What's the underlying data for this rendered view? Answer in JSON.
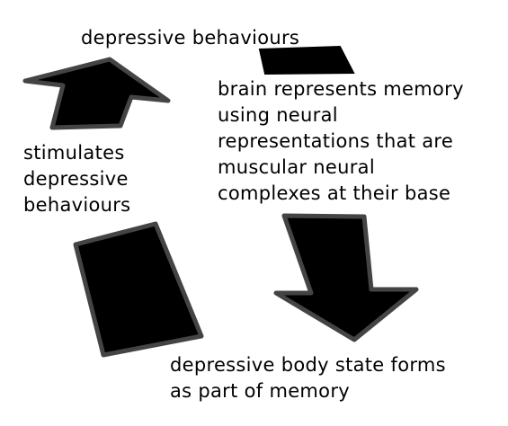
{
  "labels": {
    "top": "depressive behaviours",
    "right": [
      "brain represents memory",
      "using neural",
      "representations that are",
      "muscular neural",
      "complexes at their base"
    ],
    "left": [
      "stimulates",
      "depressive",
      "behaviours"
    ],
    "bottom": [
      "depressive body state forms",
      "as part of memory"
    ]
  },
  "colors": {
    "shape_fill": "#000000",
    "shape_outline": "#444444",
    "text": "#000000",
    "background": "#ffffff"
  }
}
